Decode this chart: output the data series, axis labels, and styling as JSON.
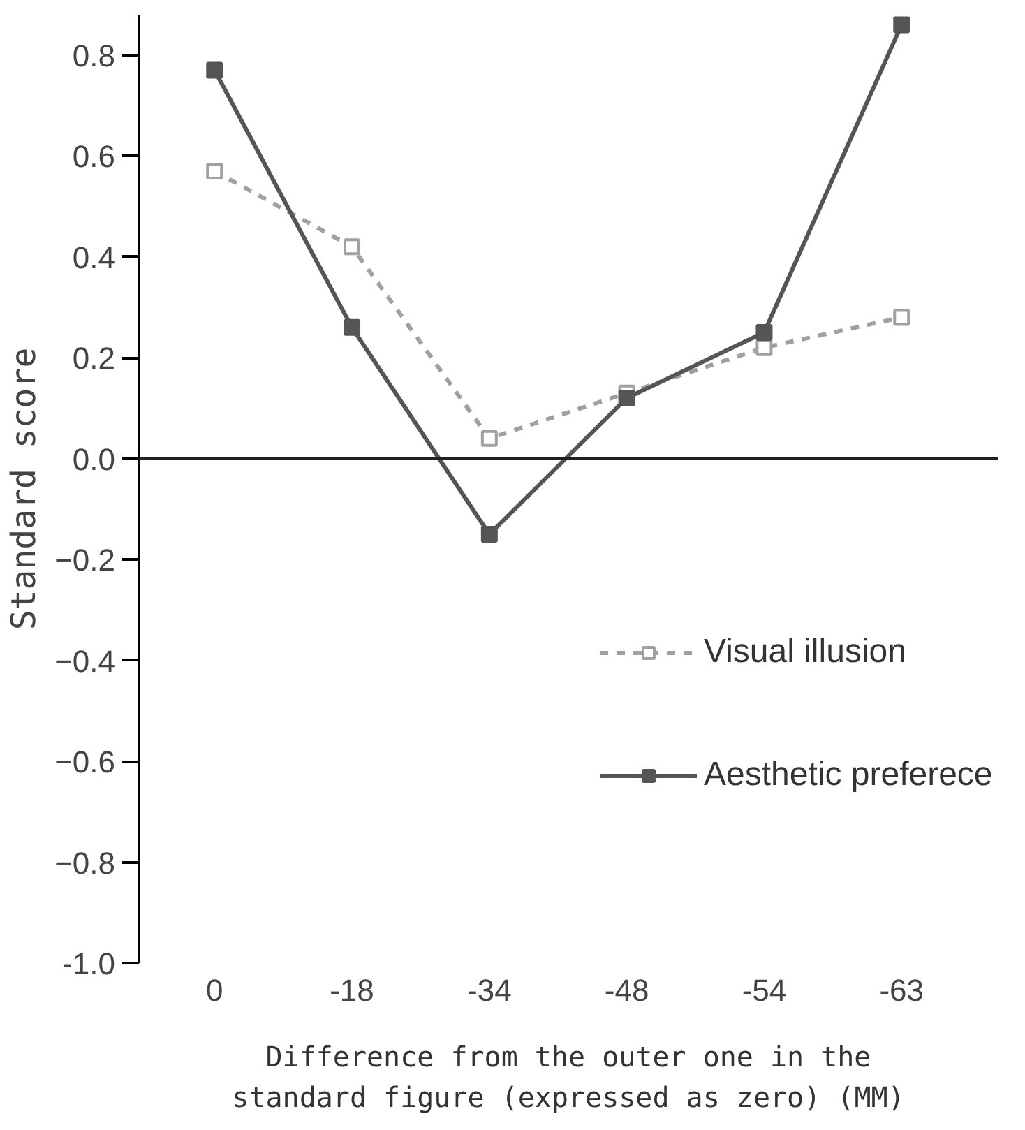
{
  "chart_data": {
    "type": "line",
    "xlabel": "Difference from the outer one in the\nstandard figure (expressed as zero) (MM)",
    "ylabel": "Standard score",
    "categories": [
      "0",
      "-18",
      "-34",
      "-48",
      "-54",
      "-63"
    ],
    "series": [
      {
        "name": "Visual illusion",
        "color": "#a0a0a0",
        "line_style": "dashed",
        "marker": "square",
        "values": [
          0.57,
          0.42,
          0.04,
          0.13,
          0.22,
          0.28
        ]
      },
      {
        "name": "Aesthetic preferece",
        "color": "#555555",
        "line_style": "solid",
        "marker": "square",
        "values": [
          0.77,
          0.26,
          -0.15,
          0.12,
          0.25,
          0.86
        ]
      }
    ],
    "ylim": [
      -1.0,
      0.88
    ],
    "yticks": [
      {
        "value": -1.0,
        "label": "-1.0"
      },
      -0.8,
      -0.6,
      -0.4,
      -0.2,
      {
        "value": 0.0,
        "label": "0.0"
      },
      0.2,
      0.4,
      0.6,
      0.8
    ],
    "legend": "right"
  }
}
